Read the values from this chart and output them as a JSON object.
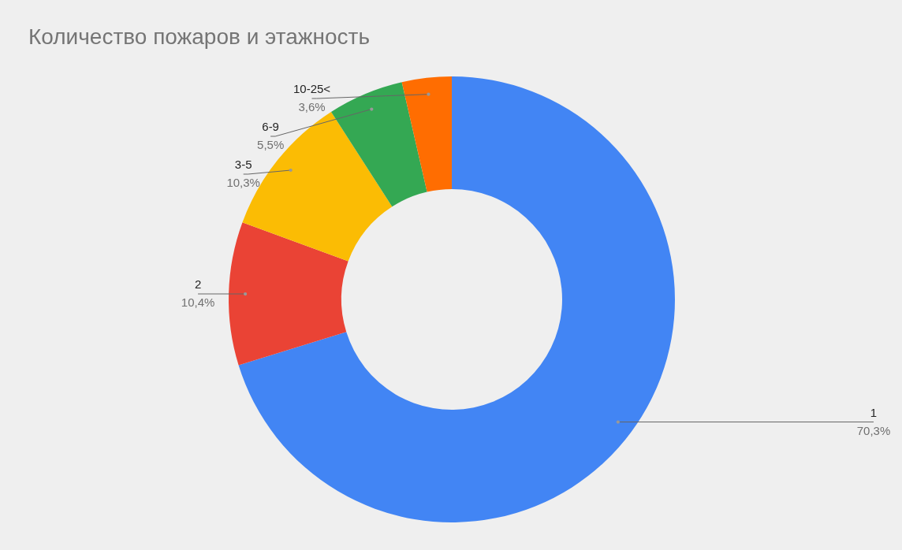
{
  "chart_data": {
    "type": "donut",
    "title": "Количество пожаров и этажность",
    "categories": [
      "1",
      "2",
      "3-5",
      "6-9",
      "10-25<"
    ],
    "values": [
      70.3,
      10.4,
      10.3,
      5.5,
      3.6
    ],
    "colors": [
      "#4285f4",
      "#ea4335",
      "#fbbc04",
      "#34a853",
      "#ff6d01"
    ],
    "value_labels": [
      "70,3%",
      "10,4%",
      "10,3%",
      "5,5%",
      "3,6%"
    ]
  }
}
